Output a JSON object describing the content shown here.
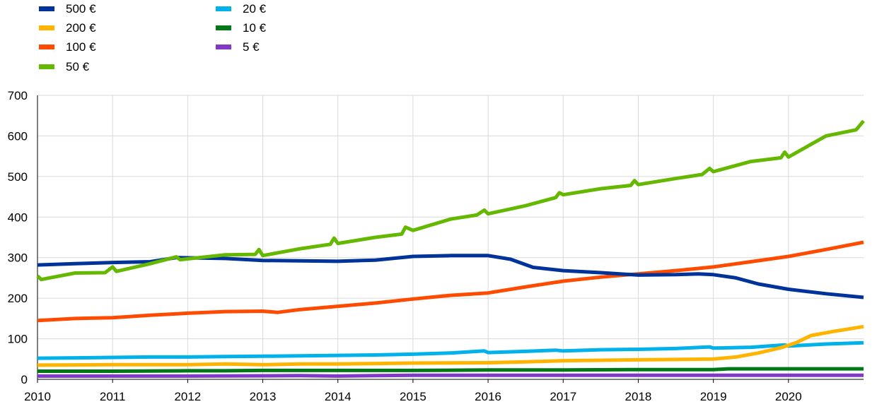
{
  "chart_data": {
    "type": "line",
    "title": "",
    "xlabel": "",
    "ylabel": "",
    "xlim": [
      2010.0,
      2021.0
    ],
    "ylim": [
      0,
      700
    ],
    "y_ticks": [
      0,
      100,
      200,
      300,
      400,
      500,
      600,
      700
    ],
    "x_tick_labels": [
      "2010",
      "2011",
      "2012",
      "2013",
      "2014",
      "2015",
      "2016",
      "2017",
      "2018",
      "2019",
      "2020"
    ],
    "x_ticks": [
      2010,
      2011,
      2012,
      2013,
      2014,
      2015,
      2016,
      2017,
      2018,
      2019,
      2020
    ],
    "grid": "vertical-and-horizontal",
    "legend_position": "top-left",
    "series": [
      {
        "name": "500 €",
        "color": "#003399",
        "points": [
          [
            2010.0,
            282
          ],
          [
            2010.5,
            285
          ],
          [
            2011.0,
            288
          ],
          [
            2011.5,
            290
          ],
          [
            2011.85,
            300
          ],
          [
            2012.5,
            298
          ],
          [
            2013.0,
            293
          ],
          [
            2013.5,
            292
          ],
          [
            2014.0,
            291
          ],
          [
            2014.5,
            294
          ],
          [
            2015.0,
            303
          ],
          [
            2015.5,
            305
          ],
          [
            2015.75,
            305
          ],
          [
            2016.0,
            305
          ],
          [
            2016.3,
            296
          ],
          [
            2016.6,
            276
          ],
          [
            2017.0,
            268
          ],
          [
            2017.5,
            263
          ],
          [
            2018.0,
            257
          ],
          [
            2018.5,
            258
          ],
          [
            2018.8,
            260
          ],
          [
            2019.0,
            258
          ],
          [
            2019.3,
            250
          ],
          [
            2019.6,
            235
          ],
          [
            2020.0,
            222
          ],
          [
            2020.5,
            211
          ],
          [
            2021.0,
            202
          ]
        ]
      },
      {
        "name": "200 €",
        "color": "#FFB400",
        "points": [
          [
            2010.0,
            35
          ],
          [
            2011.0,
            36
          ],
          [
            2012.0,
            36
          ],
          [
            2012.5,
            38
          ],
          [
            2013.0,
            36
          ],
          [
            2013.5,
            38
          ],
          [
            2014.0,
            38
          ],
          [
            2014.5,
            39
          ],
          [
            2015.0,
            40
          ],
          [
            2016.0,
            41
          ],
          [
            2016.5,
            43
          ],
          [
            2017.0,
            46
          ],
          [
            2017.5,
            47
          ],
          [
            2018.0,
            48
          ],
          [
            2018.5,
            49
          ],
          [
            2019.0,
            50
          ],
          [
            2019.3,
            55
          ],
          [
            2019.6,
            65
          ],
          [
            2019.9,
            78
          ],
          [
            2020.1,
            90
          ],
          [
            2020.3,
            108
          ],
          [
            2020.6,
            118
          ],
          [
            2021.0,
            130
          ]
        ]
      },
      {
        "name": "100 €",
        "color": "#FF4B00",
        "points": [
          [
            2010.0,
            145
          ],
          [
            2010.5,
            150
          ],
          [
            2011.0,
            152
          ],
          [
            2011.5,
            158
          ],
          [
            2012.0,
            163
          ],
          [
            2012.5,
            167
          ],
          [
            2013.0,
            168
          ],
          [
            2013.2,
            165
          ],
          [
            2013.5,
            172
          ],
          [
            2014.0,
            180
          ],
          [
            2014.5,
            188
          ],
          [
            2015.0,
            198
          ],
          [
            2015.5,
            207
          ],
          [
            2016.0,
            213
          ],
          [
            2016.5,
            228
          ],
          [
            2017.0,
            242
          ],
          [
            2017.5,
            252
          ],
          [
            2018.0,
            260
          ],
          [
            2018.5,
            268
          ],
          [
            2019.0,
            277
          ],
          [
            2019.5,
            290
          ],
          [
            2020.0,
            303
          ],
          [
            2020.5,
            320
          ],
          [
            2021.0,
            338
          ]
        ]
      },
      {
        "name": "50 €",
        "color": "#65B800",
        "points": [
          [
            2010.0,
            255
          ],
          [
            2010.05,
            246
          ],
          [
            2010.5,
            262
          ],
          [
            2010.9,
            263
          ],
          [
            2011.0,
            277
          ],
          [
            2011.05,
            266
          ],
          [
            2011.5,
            285
          ],
          [
            2011.85,
            302
          ],
          [
            2011.9,
            295
          ],
          [
            2012.5,
            307
          ],
          [
            2012.9,
            308
          ],
          [
            2012.95,
            320
          ],
          [
            2013.0,
            305
          ],
          [
            2013.5,
            322
          ],
          [
            2013.9,
            333
          ],
          [
            2013.95,
            348
          ],
          [
            2014.0,
            335
          ],
          [
            2014.5,
            350
          ],
          [
            2014.85,
            358
          ],
          [
            2014.9,
            375
          ],
          [
            2015.0,
            367
          ],
          [
            2015.5,
            395
          ],
          [
            2015.85,
            405
          ],
          [
            2015.95,
            417
          ],
          [
            2016.0,
            408
          ],
          [
            2016.5,
            428
          ],
          [
            2016.9,
            448
          ],
          [
            2016.95,
            460
          ],
          [
            2017.0,
            455
          ],
          [
            2017.5,
            470
          ],
          [
            2017.9,
            478
          ],
          [
            2017.95,
            490
          ],
          [
            2018.0,
            480
          ],
          [
            2018.5,
            495
          ],
          [
            2018.85,
            505
          ],
          [
            2018.95,
            520
          ],
          [
            2019.0,
            512
          ],
          [
            2019.5,
            537
          ],
          [
            2019.9,
            546
          ],
          [
            2019.95,
            560
          ],
          [
            2020.0,
            548
          ],
          [
            2020.5,
            600
          ],
          [
            2020.9,
            615
          ],
          [
            2021.0,
            637
          ]
        ]
      },
      {
        "name": "20 €",
        "color": "#00B1EA",
        "points": [
          [
            2010.0,
            52
          ],
          [
            2010.5,
            53
          ],
          [
            2011.0,
            54
          ],
          [
            2011.5,
            55
          ],
          [
            2012.0,
            55
          ],
          [
            2012.5,
            56
          ],
          [
            2013.0,
            57
          ],
          [
            2013.5,
            58
          ],
          [
            2014.0,
            59
          ],
          [
            2014.5,
            60
          ],
          [
            2015.0,
            62
          ],
          [
            2015.5,
            65
          ],
          [
            2015.95,
            70
          ],
          [
            2016.0,
            66
          ],
          [
            2016.5,
            69
          ],
          [
            2016.9,
            72
          ],
          [
            2017.0,
            70
          ],
          [
            2017.5,
            73
          ],
          [
            2018.0,
            74
          ],
          [
            2018.5,
            76
          ],
          [
            2018.95,
            80
          ],
          [
            2019.0,
            77
          ],
          [
            2019.5,
            79
          ],
          [
            2019.95,
            85
          ],
          [
            2020.0,
            82
          ],
          [
            2020.5,
            87
          ],
          [
            2021.0,
            90
          ]
        ]
      },
      {
        "name": "10 €",
        "color": "#007816",
        "points": [
          [
            2010.0,
            20
          ],
          [
            2011.0,
            20
          ],
          [
            2012.0,
            21
          ],
          [
            2012.5,
            21
          ],
          [
            2013.0,
            22
          ],
          [
            2014.0,
            22
          ],
          [
            2015.0,
            22
          ],
          [
            2016.0,
            23
          ],
          [
            2017.0,
            23
          ],
          [
            2018.0,
            24
          ],
          [
            2019.0,
            24
          ],
          [
            2019.2,
            26
          ],
          [
            2020.0,
            26
          ],
          [
            2021.0,
            26
          ]
        ]
      },
      {
        "name": "5 €",
        "color": "#8139C6",
        "points": [
          [
            2010.0,
            8
          ],
          [
            2012.0,
            8
          ],
          [
            2013.5,
            9
          ],
          [
            2014.0,
            8
          ],
          [
            2014.5,
            9
          ],
          [
            2015.0,
            10
          ],
          [
            2016.0,
            10
          ],
          [
            2017.0,
            10
          ],
          [
            2018.0,
            10
          ],
          [
            2019.0,
            10
          ],
          [
            2020.0,
            10
          ],
          [
            2021.0,
            10
          ]
        ]
      }
    ]
  }
}
